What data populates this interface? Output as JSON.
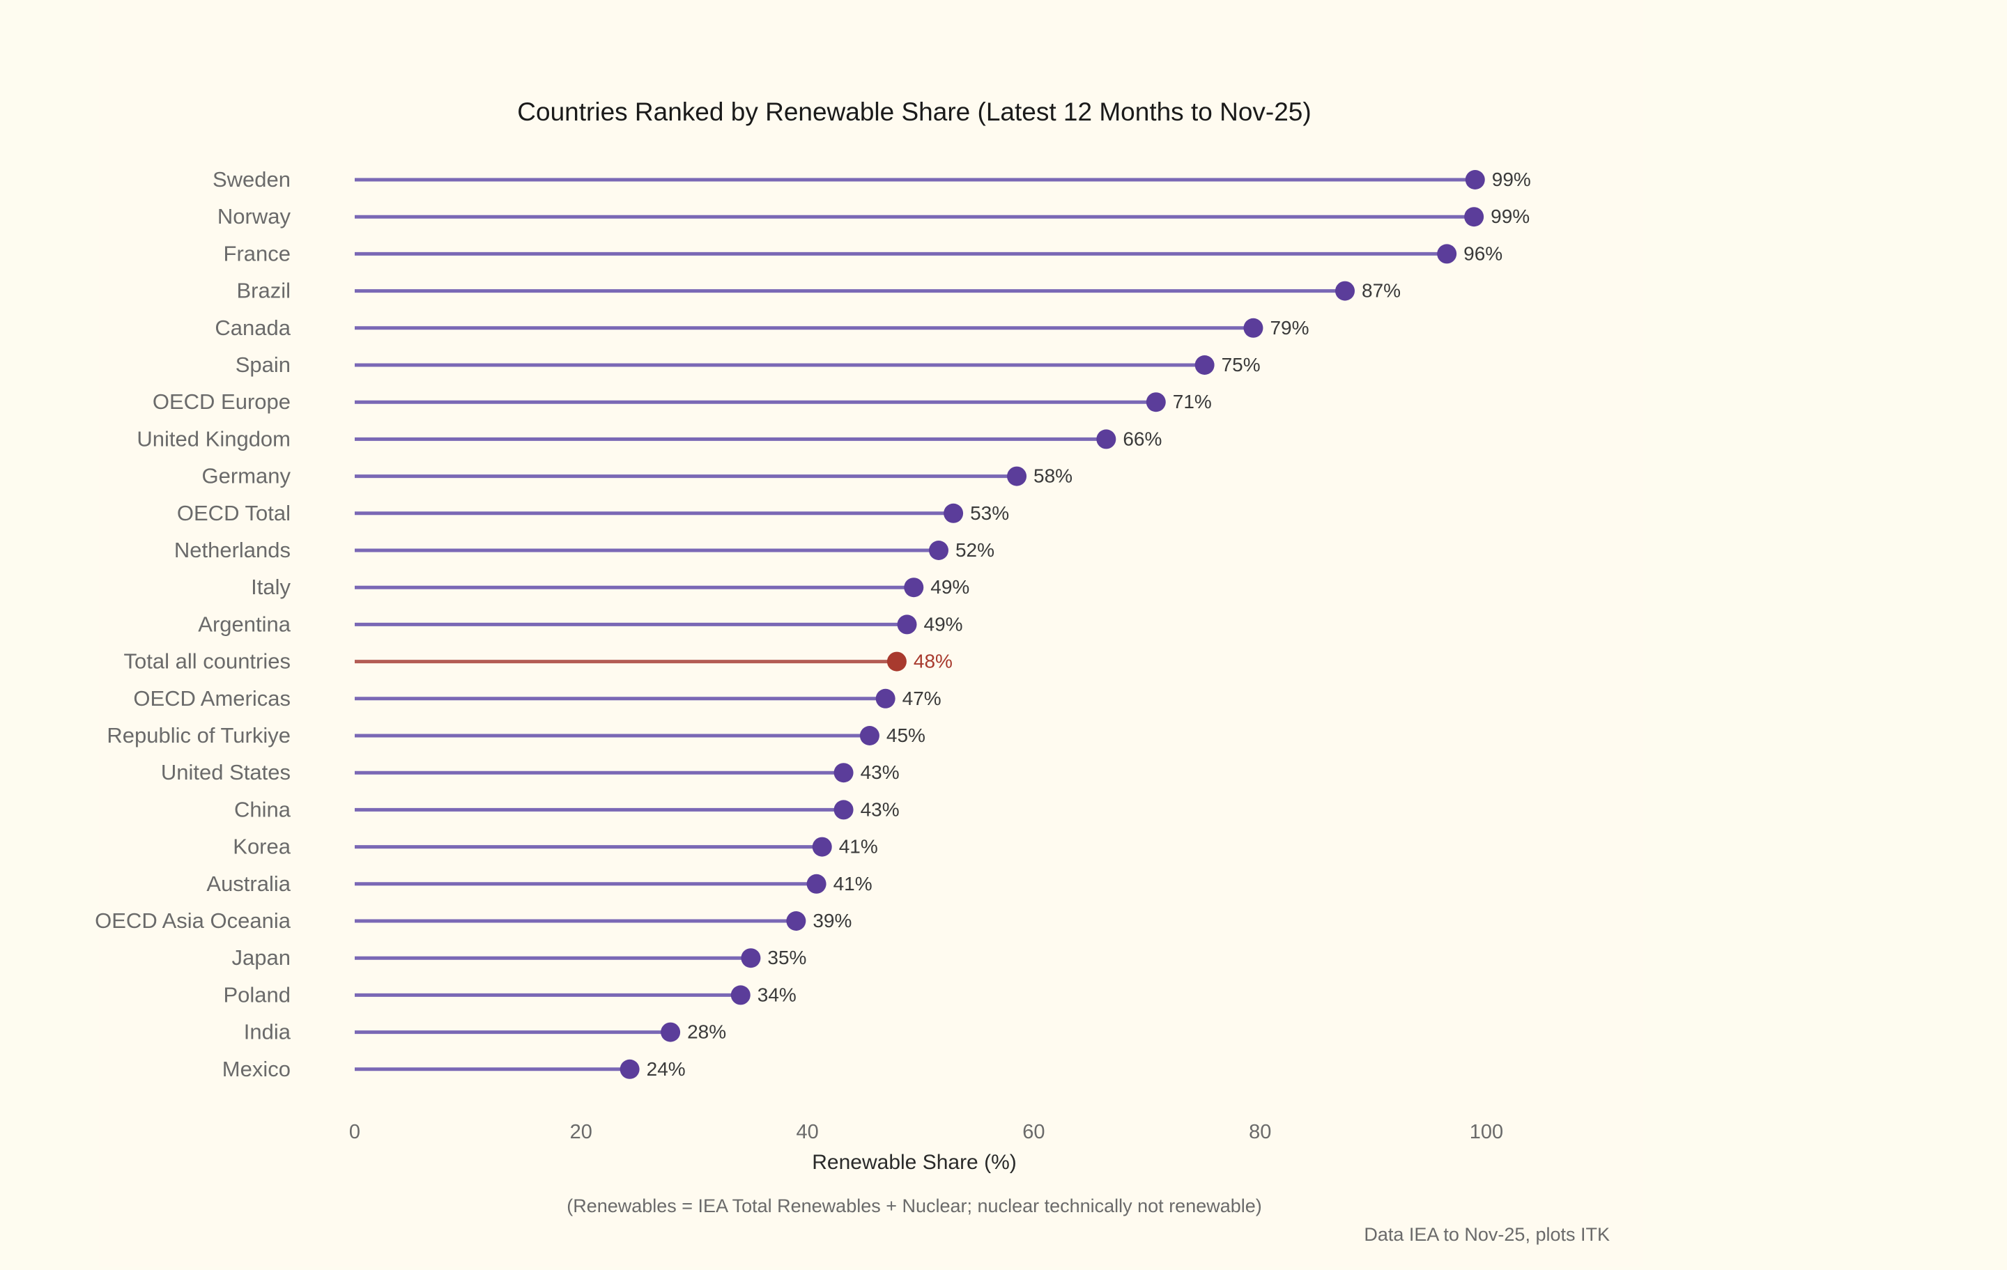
{
  "chart_data": {
    "type": "lollipop",
    "title": "Countries Ranked by Renewable Share (Latest 12 Months to Nov-25)",
    "xlabel": "Renewable Share (%)",
    "ylabel": "",
    "xlim": [
      0,
      100
    ],
    "x_ticks": [
      0,
      20,
      40,
      60,
      80,
      100
    ],
    "grid": false,
    "value_suffix": "%",
    "categories": [
      "Sweden",
      "Norway",
      "France",
      "Brazil",
      "Canada",
      "Spain",
      "OECD Europe",
      "United Kingdom",
      "Germany",
      "OECD Total",
      "Netherlands",
      "Italy",
      "Argentina",
      "Total all countries",
      "OECD Americas",
      "Republic of Turkiye",
      "United States",
      "China",
      "Korea",
      "Australia",
      "OECD Asia Oceania",
      "Japan",
      "Poland",
      "India",
      "Mexico"
    ],
    "values": [
      99,
      99,
      96,
      87,
      79,
      75,
      71,
      66,
      58,
      53,
      52,
      49,
      49,
      48,
      47,
      45,
      43,
      43,
      41,
      41,
      39,
      35,
      34,
      28,
      24
    ],
    "plot_values": [
      99.0,
      98.9,
      96.5,
      87.5,
      79.4,
      75.1,
      70.8,
      66.4,
      58.5,
      52.9,
      51.6,
      49.4,
      48.8,
      47.9,
      46.9,
      45.5,
      43.2,
      43.2,
      41.3,
      40.8,
      39.0,
      35.0,
      34.1,
      27.9,
      24.3
    ],
    "highlight": "Total all countries",
    "colors": {
      "default": "#5b3d9a",
      "default_line": "#7a68b5",
      "highlight": "#a83a2e",
      "highlight_line": "#b35c54"
    }
  },
  "annotations": {
    "note": "(Renewables = IEA Total Renewables + Nuclear; nuclear technically not renewable)",
    "source": "Data IEA to Nov-25, plots ITK"
  },
  "colors": {
    "background": "#fefcf0",
    "plot_background": "#fffbf0",
    "text": "#1a1a1a",
    "muted_text": "#6a6a6a"
  }
}
